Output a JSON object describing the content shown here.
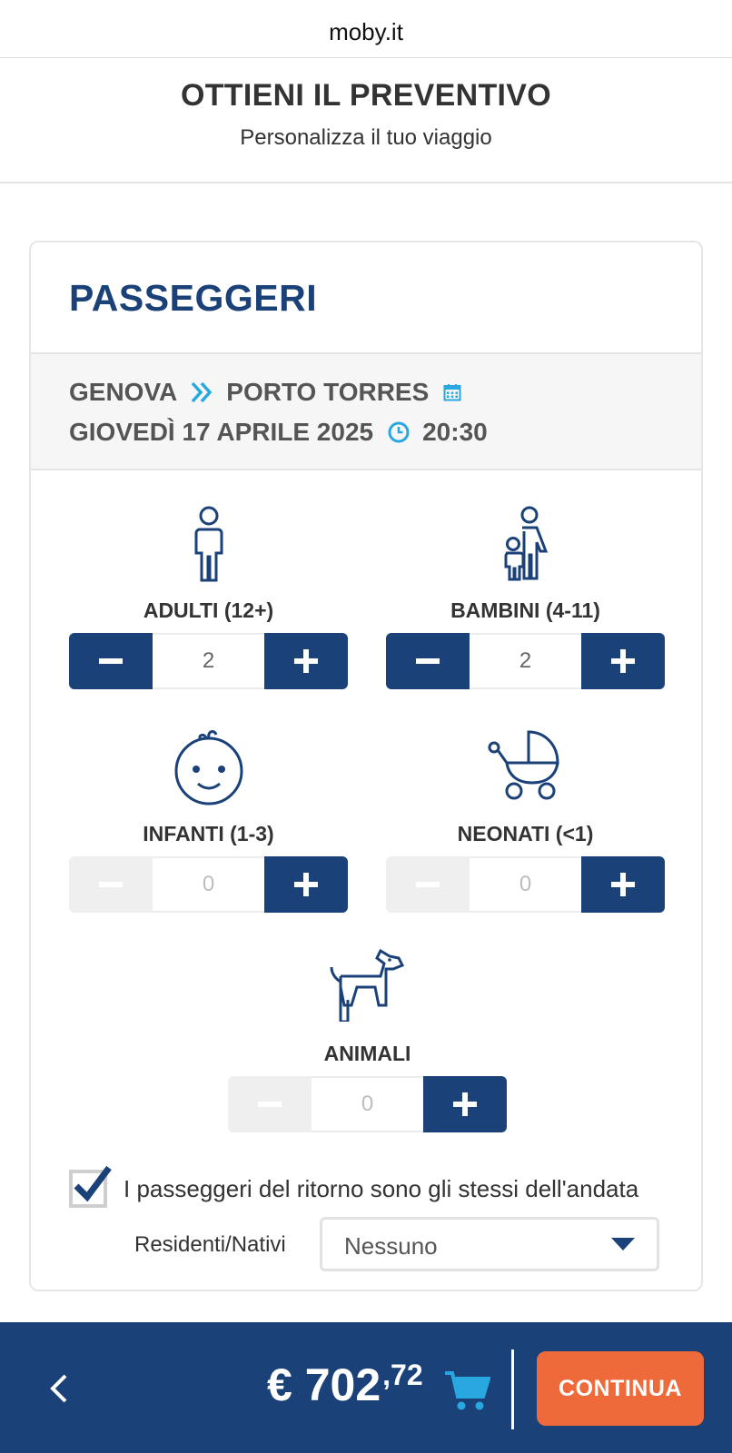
{
  "browser": {
    "url": "moby.it"
  },
  "header": {
    "title": "OTTIENI IL PREVENTIVO",
    "subtitle": "Personalizza il tuo viaggio"
  },
  "section": {
    "title": "PASSEGGERI",
    "route": {
      "from": "GENOVA",
      "to": "PORTO TORRES",
      "date": "GIOVEDÌ 17 APRILE 2025",
      "time": "20:30"
    }
  },
  "passengers": {
    "adults": {
      "label": "ADULTI (12+)",
      "value": "2"
    },
    "children": {
      "label": "BAMBINI (4-11)",
      "value": "2"
    },
    "infants": {
      "label": "INFANTI (1-3)",
      "value": "0"
    },
    "newborns": {
      "label": "NEONATI (<1)",
      "value": "0"
    },
    "animals": {
      "label": "ANIMALI",
      "value": "0"
    }
  },
  "return_same": {
    "checked": true,
    "label": "I passeggeri del ritorno sono gli stessi dell'andata"
  },
  "residents": {
    "label": "Residenti/Nativi",
    "selected": "Nessuno"
  },
  "footer": {
    "price_main": "€ 702",
    "price_cents": ",72",
    "continue_label": "CONTINUA"
  },
  "colors": {
    "brand": "#1b4179",
    "accent": "#29a7e1",
    "cta": "#ef6a3a",
    "disabled": "#efefef"
  }
}
